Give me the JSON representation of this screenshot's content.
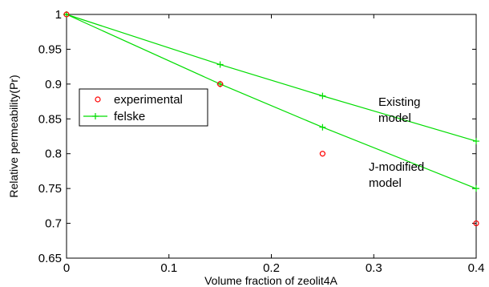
{
  "chart_data": {
    "type": "line",
    "xlabel": "Volume fraction of zeolit4A",
    "ylabel": "Relative permeability(Pr)",
    "xlim": [
      0,
      0.4
    ],
    "ylim": [
      0.65,
      1
    ],
    "x_ticks": [
      "0",
      "0.1",
      "0.2",
      "0.3",
      "0.4"
    ],
    "y_ticks": [
      "0.65",
      "0.7",
      "0.75",
      "0.8",
      "0.85",
      "0.9",
      "0.95",
      "1"
    ],
    "grid": false,
    "legend_position": "left",
    "series": [
      {
        "name": "experimental",
        "kind": "scatter",
        "marker": "circle",
        "color": "#ff0000",
        "x": [
          0,
          0.15,
          0.25,
          0.4
        ],
        "y": [
          1.0,
          0.9,
          0.8,
          0.7
        ]
      },
      {
        "name": "felske",
        "kind": "line",
        "marker": "plus",
        "color": "#00dd00",
        "x": [
          0,
          0.15,
          0.25,
          0.4
        ],
        "y": [
          1.0,
          0.9,
          0.838,
          0.75
        ]
      },
      {
        "name": "",
        "kind": "line",
        "marker": "plus",
        "color": "#00dd00",
        "x": [
          0,
          0.15,
          0.25,
          0.4
        ],
        "y": [
          1.0,
          0.928,
          0.883,
          0.818
        ]
      }
    ],
    "annotations": [
      {
        "lines": [
          "Existing",
          "model"
        ]
      },
      {
        "lines": [
          "J-modified",
          "model"
        ]
      }
    ]
  }
}
